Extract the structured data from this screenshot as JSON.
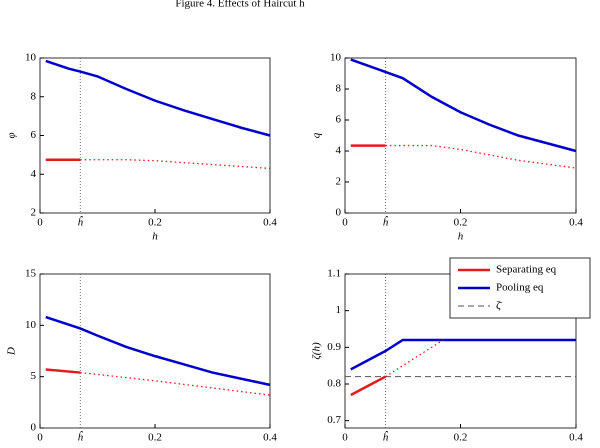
{
  "figure_title": "Figure 4. Effects of Haircut h",
  "chart_data": [
    {
      "type": "line",
      "ylabel": "φ",
      "xlabel": "h",
      "xlim": [
        0,
        0.4
      ],
      "xticks": [
        0,
        {
          "value": 0.07,
          "label": "ĥ"
        },
        0.2,
        0.4
      ],
      "ylim": [
        2,
        10
      ],
      "yticks": [
        2,
        4,
        6,
        8,
        10
      ],
      "series": [
        {
          "color": "#0000cc",
          "linestyle": "solid",
          "x": [
            0.01,
            0.05,
            0.07,
            0.1,
            0.15,
            0.2,
            0.25,
            0.3,
            0.35,
            0.4
          ],
          "values": [
            9.85,
            9.45,
            9.3,
            9.05,
            8.4,
            7.8,
            7.3,
            6.85,
            6.4,
            6.0
          ]
        },
        {
          "color": "#e41a1c",
          "linestyle": "solid",
          "x": [
            0.01,
            0.07
          ],
          "values": [
            4.75,
            4.75
          ]
        },
        {
          "color": "#e41a1c",
          "linestyle": "dotted",
          "x": [
            0.07,
            0.15,
            0.2,
            0.3,
            0.4
          ],
          "values": [
            4.75,
            4.75,
            4.7,
            4.5,
            4.3
          ]
        }
      ]
    },
    {
      "type": "line",
      "ylabel": "q",
      "xlabel": "h",
      "xlim": [
        0,
        0.4
      ],
      "xticks": [
        0,
        {
          "value": 0.07,
          "label": "ĥ"
        },
        0.2,
        0.4
      ],
      "ylim": [
        0,
        10
      ],
      "yticks": [
        0,
        2,
        4,
        6,
        8,
        10
      ],
      "series": [
        {
          "color": "#0000cc",
          "linestyle": "solid",
          "x": [
            0.01,
            0.07,
            0.1,
            0.15,
            0.2,
            0.25,
            0.3,
            0.35,
            0.4
          ],
          "values": [
            9.9,
            9.1,
            8.7,
            7.5,
            6.5,
            5.7,
            5.0,
            4.5,
            4.0
          ]
        },
        {
          "color": "#e41a1c",
          "linestyle": "solid",
          "x": [
            0.01,
            0.07
          ],
          "values": [
            4.35,
            4.35
          ]
        },
        {
          "color": "#e41a1c",
          "linestyle": "dotted",
          "x": [
            0.07,
            0.15,
            0.2,
            0.3,
            0.4
          ],
          "values": [
            4.35,
            4.35,
            4.1,
            3.4,
            2.9
          ]
        }
      ]
    },
    {
      "type": "line",
      "ylabel": "D",
      "xlim": [
        0,
        0.4
      ],
      "xticks": [
        0,
        {
          "value": 0.07,
          "label": "ĥ"
        },
        0.2,
        0.4
      ],
      "ylim": [
        0,
        15
      ],
      "yticks": [
        0,
        5,
        10,
        15
      ],
      "series": [
        {
          "color": "#0000cc",
          "linestyle": "solid",
          "x": [
            0.01,
            0.07,
            0.1,
            0.15,
            0.2,
            0.25,
            0.3,
            0.35,
            0.4
          ],
          "values": [
            10.8,
            9.7,
            9.0,
            7.9,
            7.0,
            6.2,
            5.4,
            4.8,
            4.2
          ]
        },
        {
          "color": "#e41a1c",
          "linestyle": "solid",
          "x": [
            0.01,
            0.07
          ],
          "values": [
            5.7,
            5.4
          ]
        },
        {
          "color": "#e41a1c",
          "linestyle": "dotted",
          "x": [
            0.07,
            0.2,
            0.3,
            0.4
          ],
          "values": [
            5.4,
            4.6,
            3.9,
            3.2
          ]
        }
      ]
    },
    {
      "type": "line",
      "ylabel": "ζ(h)",
      "legend": "upper right",
      "xlim": [
        0,
        0.4
      ],
      "xticks": [
        0,
        {
          "value": 0.07,
          "label": "ĥ"
        },
        0.2,
        0.4
      ],
      "ylim": [
        0.68,
        1.1
      ],
      "yticks": [
        0.7,
        0.8,
        0.9,
        1,
        1.1
      ],
      "series": [
        {
          "name": "Separating eq",
          "color": "#e41a1c",
          "linestyle": "solid",
          "x": [
            0.01,
            0.07
          ],
          "values": [
            0.77,
            0.82
          ]
        },
        {
          "name": "Pooling eq",
          "color": "#0000cc",
          "linestyle": "solid",
          "x": [
            0.01,
            0.07,
            0.1,
            0.4
          ],
          "values": [
            0.84,
            0.89,
            0.92,
            0.92
          ]
        },
        {
          "name": "ζ̄",
          "color": "#555555",
          "linestyle": "dashed",
          "x": [
            0,
            0.4
          ],
          "values": [
            0.82,
            0.82
          ]
        },
        {
          "color": "#e41a1c",
          "linestyle": "dotted",
          "x": [
            0.07,
            0.17
          ],
          "values": [
            0.82,
            0.92
          ]
        }
      ]
    }
  ]
}
